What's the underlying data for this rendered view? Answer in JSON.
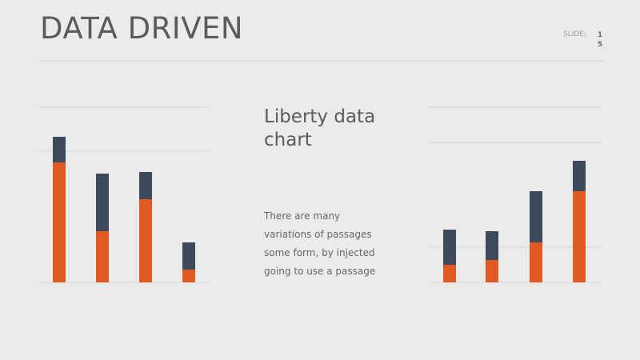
{
  "slide": {
    "title": "DATA DRIVEN",
    "slide_label": "SLIDE:",
    "slide_number": [
      "1",
      "5"
    ],
    "subtitle": "Liberty data chart",
    "body_lines": [
      "There are many",
      "variations of passages",
      "some form, by injected",
      "going to use a passage"
    ]
  },
  "colors": {
    "series_orange": "#e15a24",
    "series_navy": "#3d4a5c",
    "gridline": "#d6d6d6"
  },
  "chart_data": [
    {
      "type": "bar",
      "stacked": true,
      "categories": [
        "",
        "",
        "",
        ""
      ],
      "ylim": [
        0,
        100
      ],
      "grid": true,
      "series": [
        {
          "values": [
            75,
            32,
            52,
            8
          ]
        },
        {
          "values": [
            16,
            36,
            17,
            17
          ]
        }
      ]
    },
    {
      "type": "bar",
      "stacked": true,
      "categories": [
        "",
        "",
        "",
        ""
      ],
      "ylim": [
        0,
        100
      ],
      "grid": true,
      "series": [
        {
          "values": [
            11,
            14,
            25,
            57
          ]
        },
        {
          "values": [
            22,
            18,
            32,
            19
          ]
        }
      ]
    }
  ]
}
